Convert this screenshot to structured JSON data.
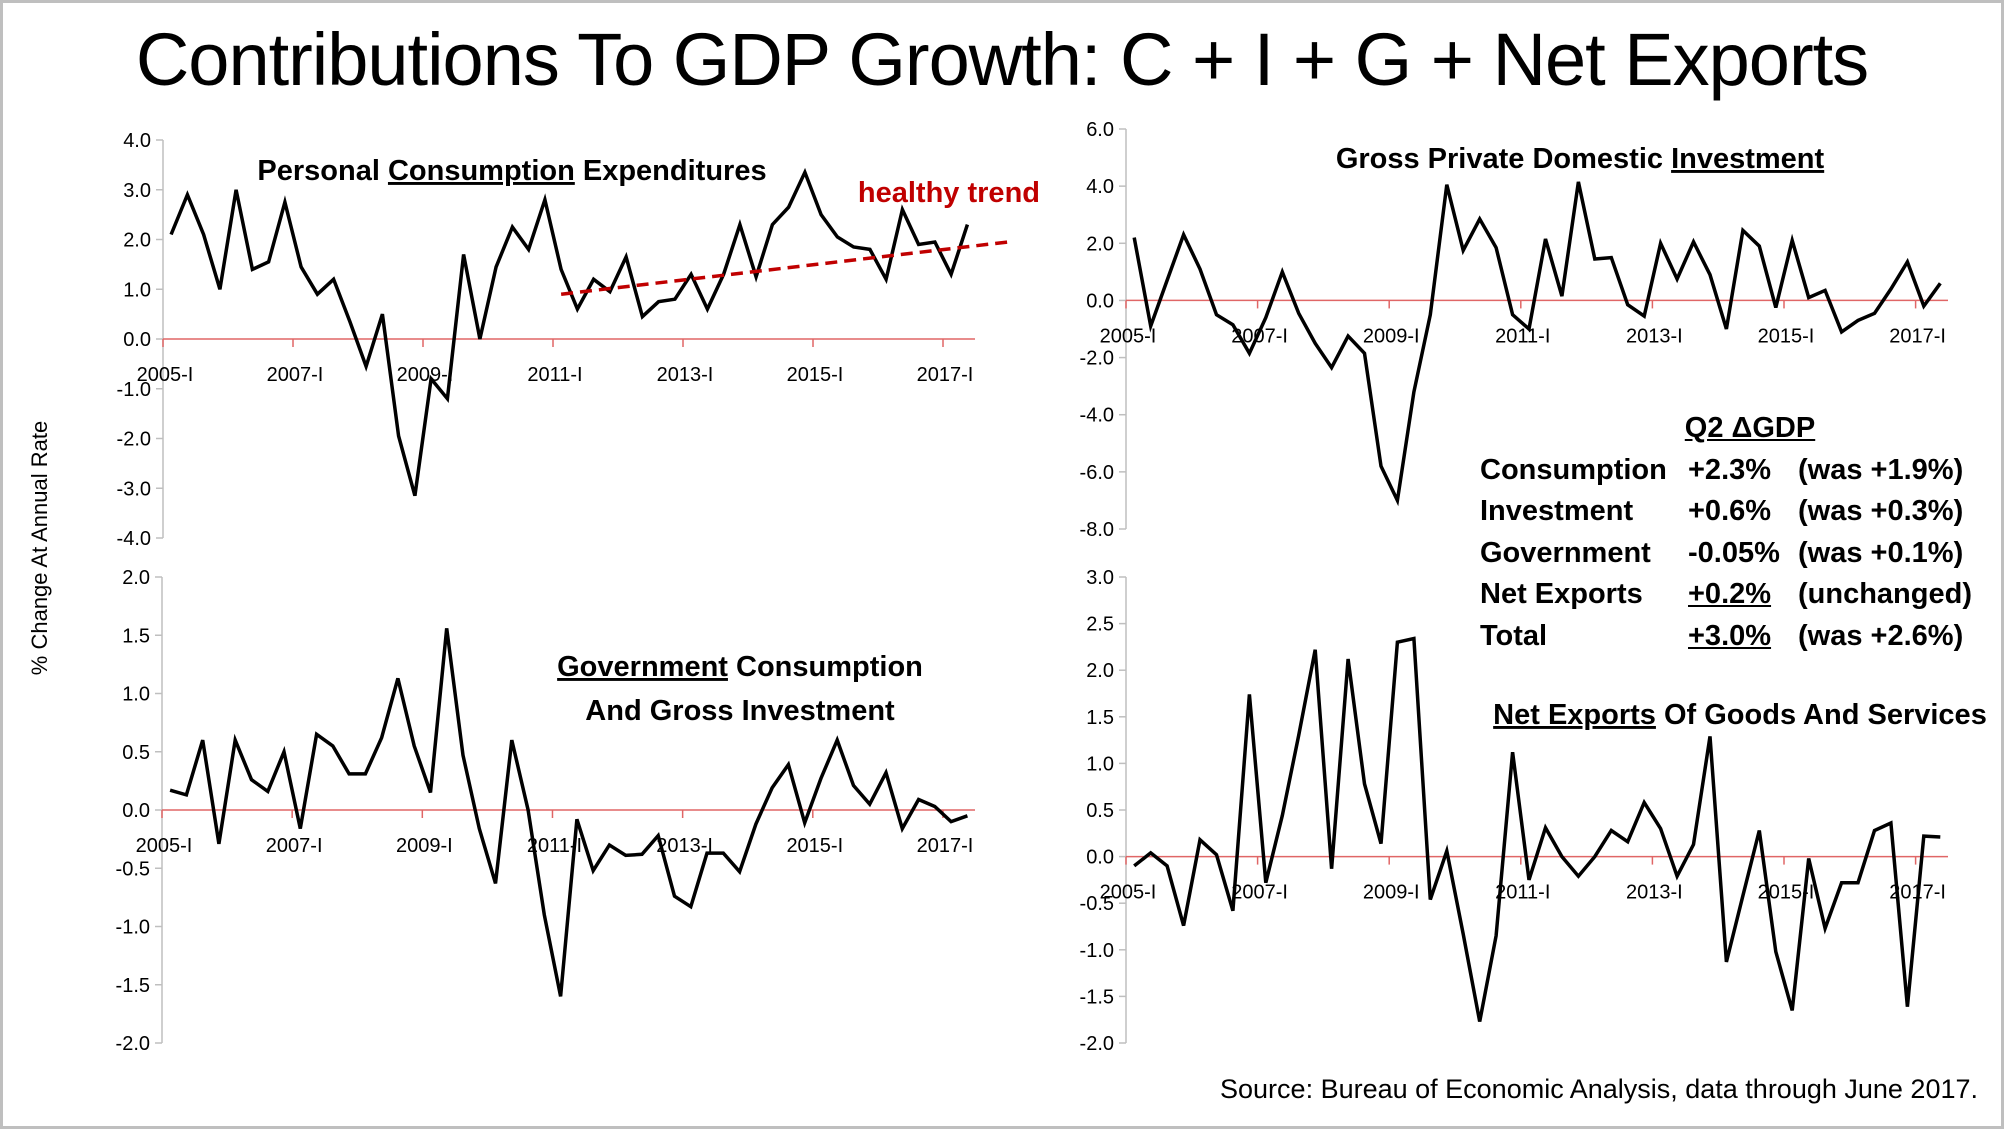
{
  "title": "Contributions To GDP Growth: C + I + G + Net Exports",
  "y_axis_label": "% Change At Annual Rate",
  "source": "Source: Bureau of Economic Analysis, data through June 2017.",
  "summary": {
    "heading": "Q2 ΔGDP",
    "rows": [
      {
        "label": "Consumption",
        "value": "+2.3%",
        "previous": "(was +1.9%)",
        "underline_value": false
      },
      {
        "label": "Investment",
        "value": "+0.6%",
        "previous": "(was +0.3%)",
        "underline_value": false
      },
      {
        "label": "Government",
        "value": "-0.05%",
        "previous": "(was +0.1%)",
        "underline_value": false
      },
      {
        "label": "Net Exports",
        "value": "+0.2%",
        "previous": "(unchanged)",
        "underline_value": true
      },
      {
        "label": "Total",
        "value": "+3.0%",
        "previous": "(was +2.6%)",
        "underline_value": true
      }
    ]
  },
  "colors": {
    "series": "#000000",
    "zero_line": "#e06666",
    "axis": "#bfbfbf",
    "trend": "#c00000"
  },
  "chart_data": [
    {
      "id": "consumption",
      "type": "line",
      "title_parts": [
        {
          "text": "Personal ",
          "underline": false
        },
        {
          "text": "Consumption",
          "underline": true
        },
        {
          "text": " Expenditures",
          "underline": false
        }
      ],
      "xlabel": "",
      "ylabel": "% Change At Annual Rate",
      "ylim": [
        -4.0,
        4.0
      ],
      "y_ticks": [
        "4.0",
        "3.0",
        "2.0",
        "1.0",
        "0.0",
        "-1.0",
        "-2.0",
        "-3.0",
        "-4.0"
      ],
      "y_tick_values": [
        4,
        3,
        2,
        1,
        0,
        -1,
        -2,
        -3,
        -4
      ],
      "x_tick_labels": [
        "2005-I",
        "2007-I",
        "2009-I",
        "2011-I",
        "2013-I",
        "2015-I",
        "2017-I"
      ],
      "start_quarter": "2005-I",
      "annotation": {
        "text": "healthy trend",
        "trend_start": {
          "quarter_index": 24,
          "value": 0.9
        },
        "trend_end": {
          "quarter_index": 51.5,
          "value": 1.95
        }
      },
      "values": [
        2.1,
        2.9,
        2.1,
        1.0,
        3.0,
        1.4,
        1.55,
        2.75,
        1.45,
        0.9,
        1.2,
        0.35,
        -0.55,
        0.5,
        -1.95,
        -3.15,
        -0.8,
        -1.2,
        1.7,
        0.0,
        1.45,
        2.25,
        1.8,
        2.8,
        1.4,
        0.6,
        1.2,
        0.95,
        1.65,
        0.45,
        0.75,
        0.8,
        1.3,
        0.6,
        1.3,
        2.3,
        1.25,
        2.3,
        2.65,
        3.35,
        2.5,
        2.05,
        1.85,
        1.8,
        1.2,
        2.6,
        1.9,
        1.95,
        1.3,
        2.3
      ]
    },
    {
      "id": "investment",
      "type": "line",
      "title_parts": [
        {
          "text": "Gross Private Domestic ",
          "underline": false
        },
        {
          "text": "Investment",
          "underline": true
        }
      ],
      "ylim": [
        -8.0,
        6.0
      ],
      "y_ticks": [
        "6.0",
        "4.0",
        "2.0",
        "0.0",
        "-2.0",
        "-4.0",
        "-6.0",
        "-8.0"
      ],
      "y_tick_values": [
        6,
        4,
        2,
        0,
        -2,
        -4,
        -6,
        -8
      ],
      "x_tick_labels": [
        "2005-I",
        "2007-I",
        "2009-I",
        "2011-I",
        "2013-I",
        "2015-I",
        "2017-I"
      ],
      "start_quarter": "2005-I",
      "values": [
        2.2,
        -0.9,
        0.7,
        2.3,
        1.1,
        -0.5,
        -0.85,
        -1.85,
        -0.6,
        1.0,
        -0.45,
        -1.5,
        -2.35,
        -1.25,
        -1.85,
        -5.8,
        -7.0,
        -3.2,
        -0.5,
        4.05,
        1.75,
        2.85,
        1.85,
        -0.5,
        -1.0,
        2.15,
        0.15,
        4.15,
        1.45,
        1.5,
        -0.15,
        -0.55,
        2.0,
        0.75,
        2.05,
        0.9,
        -1.0,
        2.45,
        1.9,
        -0.25,
        2.1,
        0.1,
        0.35,
        -1.1,
        -0.7,
        -0.45,
        0.4,
        1.35,
        -0.2,
        0.6
      ]
    },
    {
      "id": "government",
      "type": "line",
      "title_parts": [
        {
          "text": "Government",
          "underline": true
        },
        {
          "text": " Consumption",
          "underline": false
        }
      ],
      "title_line2": "And Gross Investment",
      "ylim": [
        -2.0,
        2.0
      ],
      "y_ticks": [
        "2.0",
        "1.5",
        "1.0",
        "0.5",
        "0.0",
        "-0.5",
        "-1.0",
        "-1.5",
        "-2.0"
      ],
      "y_tick_values": [
        2,
        1.5,
        1,
        0.5,
        0,
        -0.5,
        -1,
        -1.5,
        -2
      ],
      "x_tick_labels": [
        "2005-I",
        "2007-I",
        "2009-I",
        "2011-I",
        "2013-I",
        "2015-I",
        "2017-I"
      ],
      "start_quarter": "2005-I",
      "values": [
        0.17,
        0.13,
        0.6,
        -0.29,
        0.6,
        0.26,
        0.16,
        0.5,
        -0.16,
        0.65,
        0.55,
        0.31,
        0.31,
        0.62,
        1.13,
        0.55,
        0.15,
        1.56,
        0.47,
        -0.16,
        -0.63,
        0.6,
        0.0,
        -0.9,
        -1.6,
        -0.08,
        -0.52,
        -0.3,
        -0.39,
        -0.38,
        -0.22,
        -0.74,
        -0.83,
        -0.37,
        -0.37,
        -0.53,
        -0.12,
        0.19,
        0.39,
        -0.11,
        0.27,
        0.6,
        0.21,
        0.05,
        0.32,
        -0.16,
        0.09,
        0.03,
        -0.1,
        -0.05
      ]
    },
    {
      "id": "net_exports",
      "type": "line",
      "title_parts": [
        {
          "text": "Net Exports",
          "underline": true
        },
        {
          "text": " Of Goods And Services",
          "underline": false
        }
      ],
      "ylim": [
        -2.0,
        3.0
      ],
      "y_ticks": [
        "3.0",
        "2.5",
        "2.0",
        "1.5",
        "1.0",
        "0.5",
        "0.0",
        "-0.5",
        "-1.0",
        "-1.5",
        "-2.0"
      ],
      "y_tick_values": [
        3,
        2.5,
        2,
        1.5,
        1,
        0.5,
        0,
        -0.5,
        -1,
        -1.5,
        -2
      ],
      "x_tick_labels": [
        "2005-I",
        "2007-I",
        "2009-I",
        "2011-I",
        "2013-I",
        "2015-I",
        "2017-I"
      ],
      "start_quarter": "2005-I",
      "values": [
        -0.1,
        0.04,
        -0.1,
        -0.74,
        0.18,
        0.02,
        -0.58,
        1.74,
        -0.28,
        0.44,
        1.3,
        2.22,
        -0.13,
        2.12,
        0.78,
        0.14,
        2.3,
        2.34,
        -0.46,
        0.06,
        -0.83,
        -1.77,
        -0.85,
        1.12,
        -0.25,
        0.31,
        0.0,
        -0.21,
        0.0,
        0.28,
        0.16,
        0.58,
        0.3,
        -0.21,
        0.13,
        1.29,
        -1.13,
        -0.42,
        0.28,
        -1.02,
        -1.65,
        -0.02,
        -0.77,
        -0.28,
        -0.28,
        0.28,
        0.36,
        -1.61,
        0.22,
        0.21
      ]
    }
  ]
}
